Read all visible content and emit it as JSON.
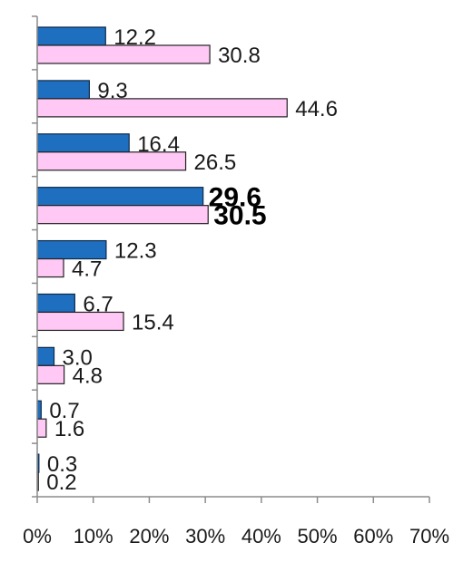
{
  "chart_data": {
    "type": "bar",
    "orientation": "horizontal",
    "title": "",
    "xlabel": "",
    "ylabel": "",
    "xlim": [
      0,
      70
    ],
    "x_ticks": [
      "0%",
      "10%",
      "20%",
      "30%",
      "40%",
      "50%",
      "60%",
      "70%"
    ],
    "grid": false,
    "legend": "none",
    "categories": [
      "",
      "",
      "",
      "",
      "",
      "",
      "",
      "",
      ""
    ],
    "series": [
      {
        "color": "#1f6fc0",
        "values": [
          12.2,
          9.3,
          16.4,
          29.6,
          12.3,
          6.7,
          3.0,
          0.7,
          0.3
        ],
        "labels": [
          "12.2",
          "9.3",
          "16.4",
          "29.6",
          "12.3",
          "6.7",
          "3.0",
          "0.7",
          "0.3"
        ]
      },
      {
        "color": "#ffc8f5",
        "values": [
          30.8,
          44.6,
          26.5,
          30.5,
          4.7,
          15.4,
          4.8,
          1.6,
          0.2
        ],
        "labels": [
          "30.8",
          "44.6",
          "26.5",
          "30.5",
          "4.7",
          "15.4",
          "4.8",
          "1.6",
          "0.2"
        ]
      }
    ],
    "highlighted_group": 3
  }
}
